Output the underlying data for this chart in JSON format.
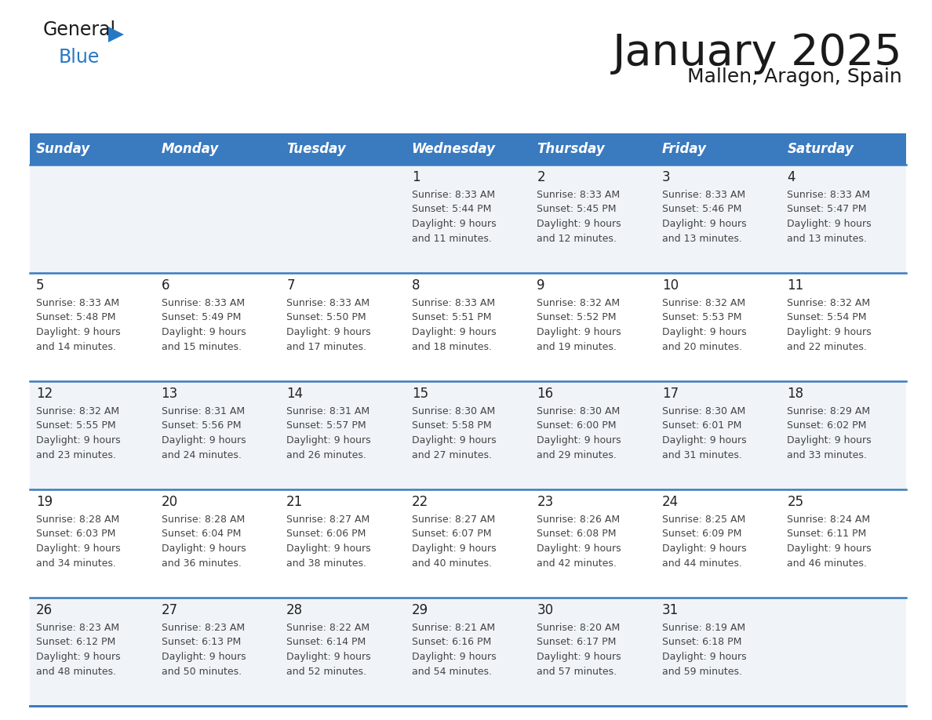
{
  "title": "January 2025",
  "subtitle": "Mallen, Aragon, Spain",
  "header_bg": "#3a7abf",
  "header_text_color": "#ffffff",
  "weekdays": [
    "Sunday",
    "Monday",
    "Tuesday",
    "Wednesday",
    "Thursday",
    "Friday",
    "Saturday"
  ],
  "row_bg_gray": "#f0f4f8",
  "row_bg_white": "#ffffff",
  "row_border_color": "#3a7abf",
  "text_color": "#444444",
  "day_num_color": "#222222",
  "logo_general_color": "#1a1a1a",
  "logo_blue_color": "#2778c4",
  "title_color": "#1a1a1a",
  "subtitle_color": "#1a1a1a",
  "weeks": [
    [
      {
        "day": "",
        "sunrise": "",
        "sunset": "",
        "daylight": ""
      },
      {
        "day": "",
        "sunrise": "",
        "sunset": "",
        "daylight": ""
      },
      {
        "day": "",
        "sunrise": "",
        "sunset": "",
        "daylight": ""
      },
      {
        "day": "1",
        "sunrise": "Sunrise: 8:33 AM",
        "sunset": "Sunset: 5:44 PM",
        "daylight": "Daylight: 9 hours\nand 11 minutes."
      },
      {
        "day": "2",
        "sunrise": "Sunrise: 8:33 AM",
        "sunset": "Sunset: 5:45 PM",
        "daylight": "Daylight: 9 hours\nand 12 minutes."
      },
      {
        "day": "3",
        "sunrise": "Sunrise: 8:33 AM",
        "sunset": "Sunset: 5:46 PM",
        "daylight": "Daylight: 9 hours\nand 13 minutes."
      },
      {
        "day": "4",
        "sunrise": "Sunrise: 8:33 AM",
        "sunset": "Sunset: 5:47 PM",
        "daylight": "Daylight: 9 hours\nand 13 minutes."
      }
    ],
    [
      {
        "day": "5",
        "sunrise": "Sunrise: 8:33 AM",
        "sunset": "Sunset: 5:48 PM",
        "daylight": "Daylight: 9 hours\nand 14 minutes."
      },
      {
        "day": "6",
        "sunrise": "Sunrise: 8:33 AM",
        "sunset": "Sunset: 5:49 PM",
        "daylight": "Daylight: 9 hours\nand 15 minutes."
      },
      {
        "day": "7",
        "sunrise": "Sunrise: 8:33 AM",
        "sunset": "Sunset: 5:50 PM",
        "daylight": "Daylight: 9 hours\nand 17 minutes."
      },
      {
        "day": "8",
        "sunrise": "Sunrise: 8:33 AM",
        "sunset": "Sunset: 5:51 PM",
        "daylight": "Daylight: 9 hours\nand 18 minutes."
      },
      {
        "day": "9",
        "sunrise": "Sunrise: 8:32 AM",
        "sunset": "Sunset: 5:52 PM",
        "daylight": "Daylight: 9 hours\nand 19 minutes."
      },
      {
        "day": "10",
        "sunrise": "Sunrise: 8:32 AM",
        "sunset": "Sunset: 5:53 PM",
        "daylight": "Daylight: 9 hours\nand 20 minutes."
      },
      {
        "day": "11",
        "sunrise": "Sunrise: 8:32 AM",
        "sunset": "Sunset: 5:54 PM",
        "daylight": "Daylight: 9 hours\nand 22 minutes."
      }
    ],
    [
      {
        "day": "12",
        "sunrise": "Sunrise: 8:32 AM",
        "sunset": "Sunset: 5:55 PM",
        "daylight": "Daylight: 9 hours\nand 23 minutes."
      },
      {
        "day": "13",
        "sunrise": "Sunrise: 8:31 AM",
        "sunset": "Sunset: 5:56 PM",
        "daylight": "Daylight: 9 hours\nand 24 minutes."
      },
      {
        "day": "14",
        "sunrise": "Sunrise: 8:31 AM",
        "sunset": "Sunset: 5:57 PM",
        "daylight": "Daylight: 9 hours\nand 26 minutes."
      },
      {
        "day": "15",
        "sunrise": "Sunrise: 8:30 AM",
        "sunset": "Sunset: 5:58 PM",
        "daylight": "Daylight: 9 hours\nand 27 minutes."
      },
      {
        "day": "16",
        "sunrise": "Sunrise: 8:30 AM",
        "sunset": "Sunset: 6:00 PM",
        "daylight": "Daylight: 9 hours\nand 29 minutes."
      },
      {
        "day": "17",
        "sunrise": "Sunrise: 8:30 AM",
        "sunset": "Sunset: 6:01 PM",
        "daylight": "Daylight: 9 hours\nand 31 minutes."
      },
      {
        "day": "18",
        "sunrise": "Sunrise: 8:29 AM",
        "sunset": "Sunset: 6:02 PM",
        "daylight": "Daylight: 9 hours\nand 33 minutes."
      }
    ],
    [
      {
        "day": "19",
        "sunrise": "Sunrise: 8:28 AM",
        "sunset": "Sunset: 6:03 PM",
        "daylight": "Daylight: 9 hours\nand 34 minutes."
      },
      {
        "day": "20",
        "sunrise": "Sunrise: 8:28 AM",
        "sunset": "Sunset: 6:04 PM",
        "daylight": "Daylight: 9 hours\nand 36 minutes."
      },
      {
        "day": "21",
        "sunrise": "Sunrise: 8:27 AM",
        "sunset": "Sunset: 6:06 PM",
        "daylight": "Daylight: 9 hours\nand 38 minutes."
      },
      {
        "day": "22",
        "sunrise": "Sunrise: 8:27 AM",
        "sunset": "Sunset: 6:07 PM",
        "daylight": "Daylight: 9 hours\nand 40 minutes."
      },
      {
        "day": "23",
        "sunrise": "Sunrise: 8:26 AM",
        "sunset": "Sunset: 6:08 PM",
        "daylight": "Daylight: 9 hours\nand 42 minutes."
      },
      {
        "day": "24",
        "sunrise": "Sunrise: 8:25 AM",
        "sunset": "Sunset: 6:09 PM",
        "daylight": "Daylight: 9 hours\nand 44 minutes."
      },
      {
        "day": "25",
        "sunrise": "Sunrise: 8:24 AM",
        "sunset": "Sunset: 6:11 PM",
        "daylight": "Daylight: 9 hours\nand 46 minutes."
      }
    ],
    [
      {
        "day": "26",
        "sunrise": "Sunrise: 8:23 AM",
        "sunset": "Sunset: 6:12 PM",
        "daylight": "Daylight: 9 hours\nand 48 minutes."
      },
      {
        "day": "27",
        "sunrise": "Sunrise: 8:23 AM",
        "sunset": "Sunset: 6:13 PM",
        "daylight": "Daylight: 9 hours\nand 50 minutes."
      },
      {
        "day": "28",
        "sunrise": "Sunrise: 8:22 AM",
        "sunset": "Sunset: 6:14 PM",
        "daylight": "Daylight: 9 hours\nand 52 minutes."
      },
      {
        "day": "29",
        "sunrise": "Sunrise: 8:21 AM",
        "sunset": "Sunset: 6:16 PM",
        "daylight": "Daylight: 9 hours\nand 54 minutes."
      },
      {
        "day": "30",
        "sunrise": "Sunrise: 8:20 AM",
        "sunset": "Sunset: 6:17 PM",
        "daylight": "Daylight: 9 hours\nand 57 minutes."
      },
      {
        "day": "31",
        "sunrise": "Sunrise: 8:19 AM",
        "sunset": "Sunset: 6:18 PM",
        "daylight": "Daylight: 9 hours\nand 59 minutes."
      },
      {
        "day": "",
        "sunrise": "",
        "sunset": "",
        "daylight": ""
      }
    ]
  ]
}
